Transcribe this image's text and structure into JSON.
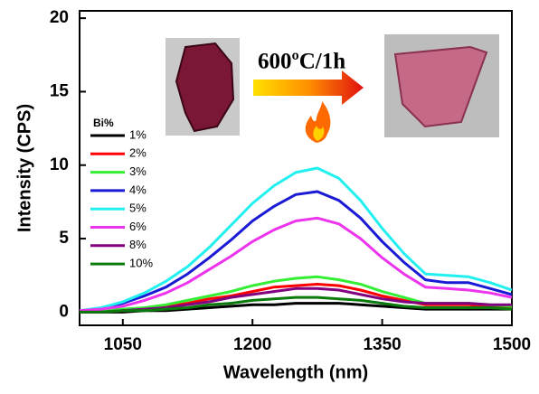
{
  "chart_data": {
    "type": "line",
    "x_label": "Wavelength (nm)",
    "y_label": "Intensity (CPS)",
    "legend_title": "Bi%",
    "annotation": "600ºC/1h",
    "x": [
      1000,
      1025,
      1050,
      1075,
      1100,
      1125,
      1150,
      1175,
      1200,
      1225,
      1250,
      1275,
      1300,
      1325,
      1350,
      1375,
      1400,
      1425,
      1450,
      1475,
      1500
    ],
    "series": [
      {
        "name": "1%",
        "color": "#000000",
        "values": [
          0.0,
          0.0,
          0.0,
          0.1,
          0.1,
          0.2,
          0.3,
          0.4,
          0.5,
          0.5,
          0.6,
          0.6,
          0.6,
          0.5,
          0.4,
          0.3,
          0.2,
          0.2,
          0.2,
          0.2,
          0.2
        ]
      },
      {
        "name": "2%",
        "color": "#ff0000",
        "values": [
          0.0,
          0.1,
          0.1,
          0.2,
          0.4,
          0.6,
          0.9,
          1.1,
          1.4,
          1.7,
          1.8,
          1.9,
          1.8,
          1.5,
          1.1,
          0.8,
          0.5,
          0.5,
          0.5,
          0.4,
          0.3
        ]
      },
      {
        "name": "3%",
        "color": "#33ee33",
        "values": [
          0.0,
          0.1,
          0.2,
          0.3,
          0.5,
          0.8,
          1.1,
          1.4,
          1.8,
          2.1,
          2.3,
          2.4,
          2.2,
          1.9,
          1.4,
          1.0,
          0.6,
          0.6,
          0.6,
          0.5,
          0.4
        ]
      },
      {
        "name": "4%",
        "color": "#1a1ad6",
        "values": [
          0.1,
          0.2,
          0.6,
          1.1,
          1.7,
          2.6,
          3.7,
          4.9,
          6.2,
          7.2,
          8.0,
          8.2,
          7.6,
          6.4,
          4.8,
          3.4,
          2.2,
          2.0,
          2.0,
          1.6,
          1.2
        ]
      },
      {
        "name": "5%",
        "color": "#22f0f0",
        "values": [
          0.1,
          0.3,
          0.7,
          1.3,
          2.1,
          3.1,
          4.4,
          5.9,
          7.4,
          8.6,
          9.5,
          9.8,
          9.1,
          7.6,
          5.7,
          4.0,
          2.6,
          2.5,
          2.4,
          2.0,
          1.5
        ]
      },
      {
        "name": "6%",
        "color": "#ee33ee",
        "values": [
          0.1,
          0.2,
          0.4,
          0.8,
          1.3,
          2.0,
          2.9,
          3.8,
          4.8,
          5.6,
          6.2,
          6.4,
          6.0,
          5.0,
          3.7,
          2.6,
          1.7,
          1.6,
          1.5,
          1.3,
          1.0
        ]
      },
      {
        "name": "8%",
        "color": "#800080",
        "values": [
          0.0,
          0.0,
          0.1,
          0.2,
          0.3,
          0.5,
          0.7,
          1.0,
          1.2,
          1.4,
          1.6,
          1.6,
          1.5,
          1.2,
          0.9,
          0.7,
          0.6,
          0.6,
          0.6,
          0.5,
          0.5
        ]
      },
      {
        "name": "10%",
        "color": "#0a7a0a",
        "values": [
          0.0,
          0.0,
          0.1,
          0.1,
          0.2,
          0.3,
          0.5,
          0.6,
          0.8,
          0.9,
          1.0,
          1.0,
          0.9,
          0.8,
          0.6,
          0.4,
          0.3,
          0.3,
          0.3,
          0.3,
          0.2
        ]
      }
    ],
    "xlim": [
      1000,
      1500
    ],
    "xticks": [
      1050,
      1200,
      1350,
      1500
    ],
    "ylim": [
      -0.9,
      20.5
    ],
    "yticks": [
      0,
      5,
      10,
      15,
      20
    ],
    "grid": false,
    "legend": "upper left"
  }
}
